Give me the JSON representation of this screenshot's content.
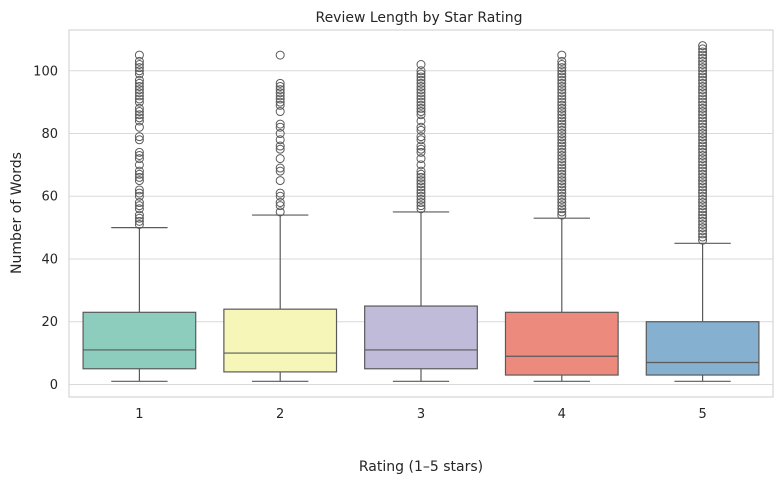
{
  "chart_data": {
    "type": "box",
    "title": "Review Length by Star Rating",
    "xlabel": "Rating (1–5 stars)",
    "ylabel": "Number of Words",
    "categories": [
      "1",
      "2",
      "3",
      "4",
      "5"
    ],
    "ylim": [
      -4,
      113
    ],
    "yticks": [
      0,
      20,
      40,
      60,
      80,
      100
    ],
    "grid": "horizontal",
    "colors": [
      "#8dcdbe",
      "#f6f6b9",
      "#bfbbd8",
      "#ed8a7e",
      "#86b0cf"
    ],
    "boxes": [
      {
        "category": "1",
        "whisker_low": 1,
        "q1": 5,
        "median": 11,
        "q3": 23,
        "whisker_high": 50,
        "outliers": [
          51,
          52,
          53,
          54,
          56,
          57,
          58,
          60,
          61,
          62,
          65,
          66,
          67,
          68,
          70,
          72,
          73,
          74,
          78,
          79,
          82,
          84,
          85,
          86,
          87,
          88,
          90,
          91,
          92,
          93,
          94,
          95,
          96,
          97,
          99,
          100,
          101,
          102,
          103,
          105
        ]
      },
      {
        "category": "2",
        "whisker_low": 1,
        "q1": 4,
        "median": 10,
        "q3": 24,
        "whisker_high": 54,
        "outliers": [
          55,
          57,
          58,
          60,
          61,
          65,
          68,
          69,
          72,
          75,
          76,
          78,
          80,
          82,
          83,
          87,
          89,
          90,
          91,
          92,
          93,
          94,
          95,
          96,
          105
        ]
      },
      {
        "category": "3",
        "whisker_low": 1,
        "q1": 5,
        "median": 11,
        "q3": 25,
        "whisker_high": 55,
        "outliers": [
          56,
          57,
          58,
          59,
          60,
          61,
          62,
          63,
          64,
          65,
          66,
          67,
          68,
          70,
          72,
          74,
          75,
          76,
          78,
          79,
          81,
          82,
          84,
          86,
          87,
          88,
          89,
          90,
          91,
          92,
          93,
          94,
          95,
          96,
          97,
          98,
          99,
          100,
          102
        ]
      },
      {
        "category": "4",
        "whisker_low": 1,
        "q1": 3,
        "median": 9,
        "q3": 23,
        "whisker_high": 53,
        "outliers": [
          54,
          55,
          56,
          57,
          58,
          59,
          60,
          61,
          62,
          63,
          64,
          65,
          66,
          67,
          68,
          69,
          70,
          71,
          72,
          73,
          74,
          75,
          76,
          77,
          78,
          79,
          80,
          81,
          82,
          83,
          84,
          85,
          86,
          87,
          88,
          89,
          90,
          91,
          92,
          93,
          94,
          95,
          96,
          97,
          98,
          99,
          100,
          101,
          102,
          103,
          105
        ]
      },
      {
        "category": "5",
        "whisker_low": 1,
        "q1": 3,
        "median": 7,
        "q3": 20,
        "whisker_high": 45,
        "outliers": [
          46,
          47,
          48,
          49,
          50,
          51,
          52,
          53,
          54,
          55,
          56,
          57,
          58,
          59,
          60,
          61,
          62,
          63,
          64,
          65,
          66,
          67,
          68,
          69,
          70,
          71,
          72,
          73,
          74,
          75,
          76,
          77,
          78,
          79,
          80,
          81,
          82,
          83,
          84,
          85,
          86,
          87,
          88,
          89,
          90,
          91,
          92,
          93,
          94,
          95,
          96,
          97,
          98,
          99,
          100,
          101,
          102,
          103,
          104,
          105,
          106,
          107,
          108
        ]
      }
    ]
  }
}
